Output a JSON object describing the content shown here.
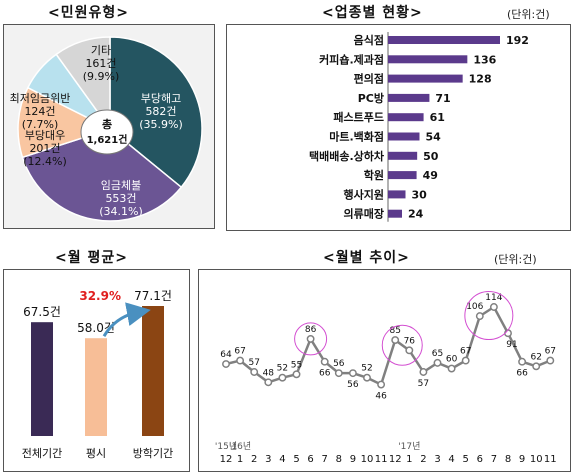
{
  "titles": {
    "pie": "<민원유형>",
    "industry": "<업종별 현황>",
    "industry_unit": "(단위:건)",
    "avg": "<월 평균>",
    "trend": "<월별 추이>",
    "trend_unit": "(단위:건)"
  },
  "pie_center": {
    "label": "총",
    "value": "1,621건"
  },
  "colors": {
    "pie": [
      "#245561",
      "#6b5594",
      "#f9c6a1",
      "#b8e1ee",
      "#d6d6d6"
    ],
    "industry_bar": "#5b3a8c",
    "avg_bars": [
      "#3a2a55",
      "#f7be97",
      "#8b4513"
    ],
    "avg_highlight": "#e02020",
    "trend_line": "#808080",
    "trend_circle": "#d34ed1"
  },
  "chart_data": [
    {
      "type": "pie",
      "title": "<민원유형>",
      "slices": [
        {
          "name": "부당해고",
          "count": "582건",
          "pct_label": "(35.9%)",
          "value": 582,
          "pct": 35.9
        },
        {
          "name": "임금체불",
          "count": "553건",
          "pct_label": "(34.1%)",
          "value": 553,
          "pct": 34.1
        },
        {
          "name": "부당대우",
          "count": "201건",
          "pct_label": "(12.4%)",
          "value": 201,
          "pct": 12.4
        },
        {
          "name": "최저임금위반",
          "count": "124건",
          "pct_label": "(7.7%)",
          "value": 124,
          "pct": 7.7
        },
        {
          "name": "기타",
          "count": "161건",
          "pct_label": "(9.9%)",
          "value": 161,
          "pct": 9.9
        }
      ],
      "total": "1,621건"
    },
    {
      "type": "bar",
      "title": "<업종별 현황>",
      "orientation": "horizontal",
      "categories": [
        "음식점",
        "커피숍.제과점",
        "편의점",
        "PC방",
        "패스트푸드",
        "마트.백화점",
        "택배배송.상하차",
        "학원",
        "행사지원",
        "의류매장"
      ],
      "values": [
        192,
        136,
        128,
        71,
        61,
        54,
        50,
        49,
        30,
        24
      ]
    },
    {
      "type": "bar",
      "title": "<월 평균>",
      "categories": [
        "전체기간",
        "평시",
        "방학기간"
      ],
      "values": [
        67.5,
        58.0,
        77.1
      ],
      "value_labels": [
        "67.5건",
        "58.0건",
        "77.1건"
      ],
      "annotation": "32.9%"
    },
    {
      "type": "line",
      "title": "<월별 추이>",
      "x": [
        "12",
        "1",
        "2",
        "3",
        "4",
        "5",
        "6",
        "7",
        "8",
        "9",
        "10",
        "11",
        "12",
        "1",
        "2",
        "3",
        "4",
        "5",
        "6",
        "7",
        "8",
        "9",
        "10",
        "11"
      ],
      "year_labels": [
        {
          "index": 0,
          "text": "'15년"
        },
        {
          "index": 1,
          "text": "'16년"
        },
        {
          "index": 13,
          "text": "'17년"
        }
      ],
      "values": [
        64,
        67,
        57,
        48,
        52,
        55,
        86,
        66,
        56,
        56,
        52,
        46,
        85,
        76,
        57,
        65,
        60,
        67,
        106,
        114,
        91,
        66,
        62,
        67
      ],
      "highlighted_points": [
        6,
        12,
        13,
        18,
        19
      ]
    }
  ]
}
